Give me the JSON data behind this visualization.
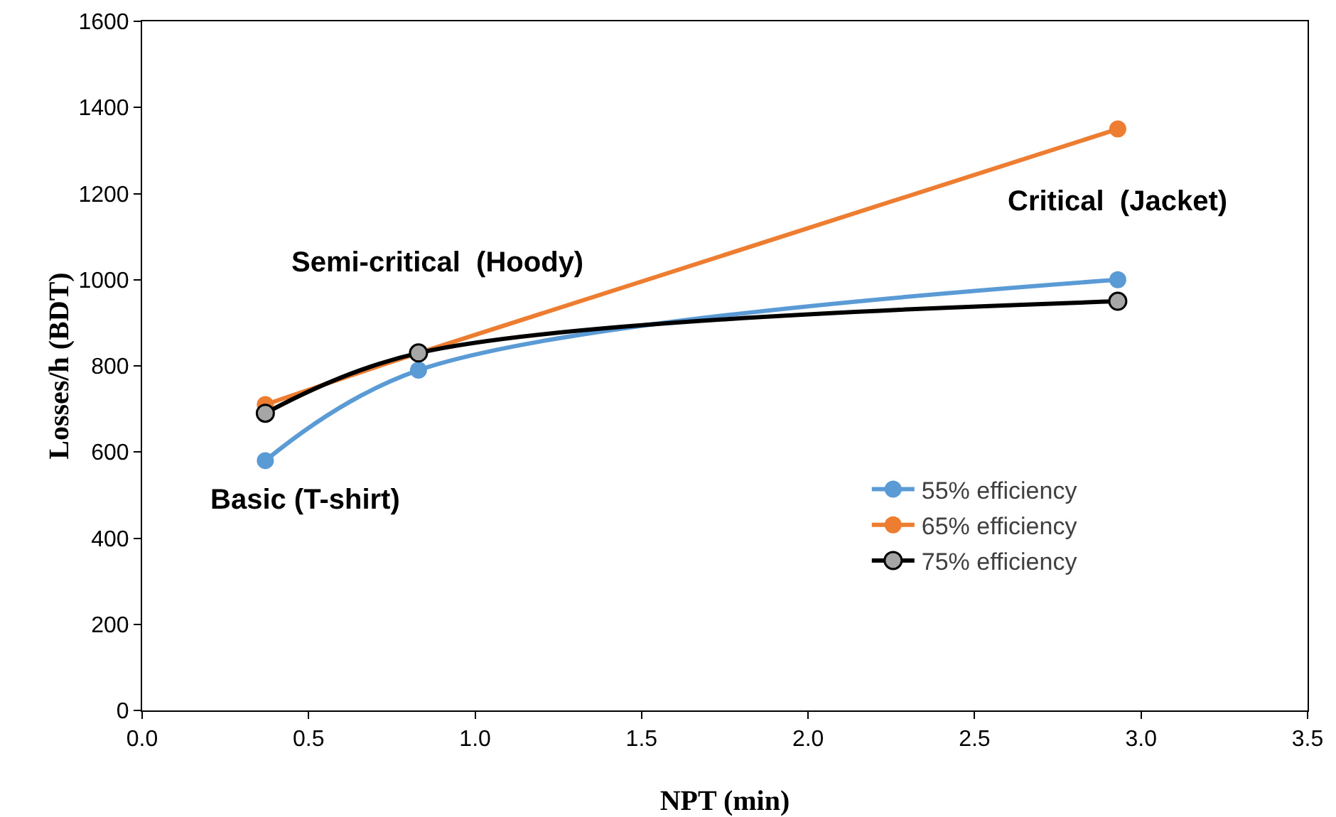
{
  "chart_data": {
    "type": "line",
    "xlabel": "NPT (min)",
    "ylabel": "Losses/h (BDT)",
    "x": [
      0.37,
      0.83,
      2.93
    ],
    "series": [
      {
        "name": "55% efficiency",
        "color": "#5b9bd5",
        "values": [
          580,
          790,
          1000
        ]
      },
      {
        "name": "65% efficiency",
        "color": "#ed7d31",
        "values": [
          710,
          830,
          1350
        ]
      },
      {
        "name": "75% efficiency",
        "color": "#000000",
        "values": [
          690,
          830,
          950
        ]
      }
    ],
    "xlim": [
      0,
      3.5
    ],
    "xticks": [
      {
        "value": 0,
        "label": "0.0"
      },
      {
        "value": 0.5,
        "label": "0.5"
      },
      {
        "value": 1,
        "label": "1.0"
      },
      {
        "value": 1.5,
        "label": "1.5"
      },
      {
        "value": 2,
        "label": "2.0"
      },
      {
        "value": 2.5,
        "label": "2.5"
      },
      {
        "value": 3,
        "label": "3.0"
      },
      {
        "value": 3.5,
        "label": "3.5"
      }
    ],
    "ylim": [
      0,
      1600
    ],
    "yticks": [
      0,
      200,
      400,
      600,
      800,
      1000,
      1200,
      1400,
      1600
    ],
    "annotations": [
      "Basic (T-shirt)",
      "Semi-critical  (Hoody)",
      "Critical  (Jacket)"
    ],
    "grid": false,
    "legend": "right",
    "marker": "circle",
    "line_style": "solid"
  }
}
